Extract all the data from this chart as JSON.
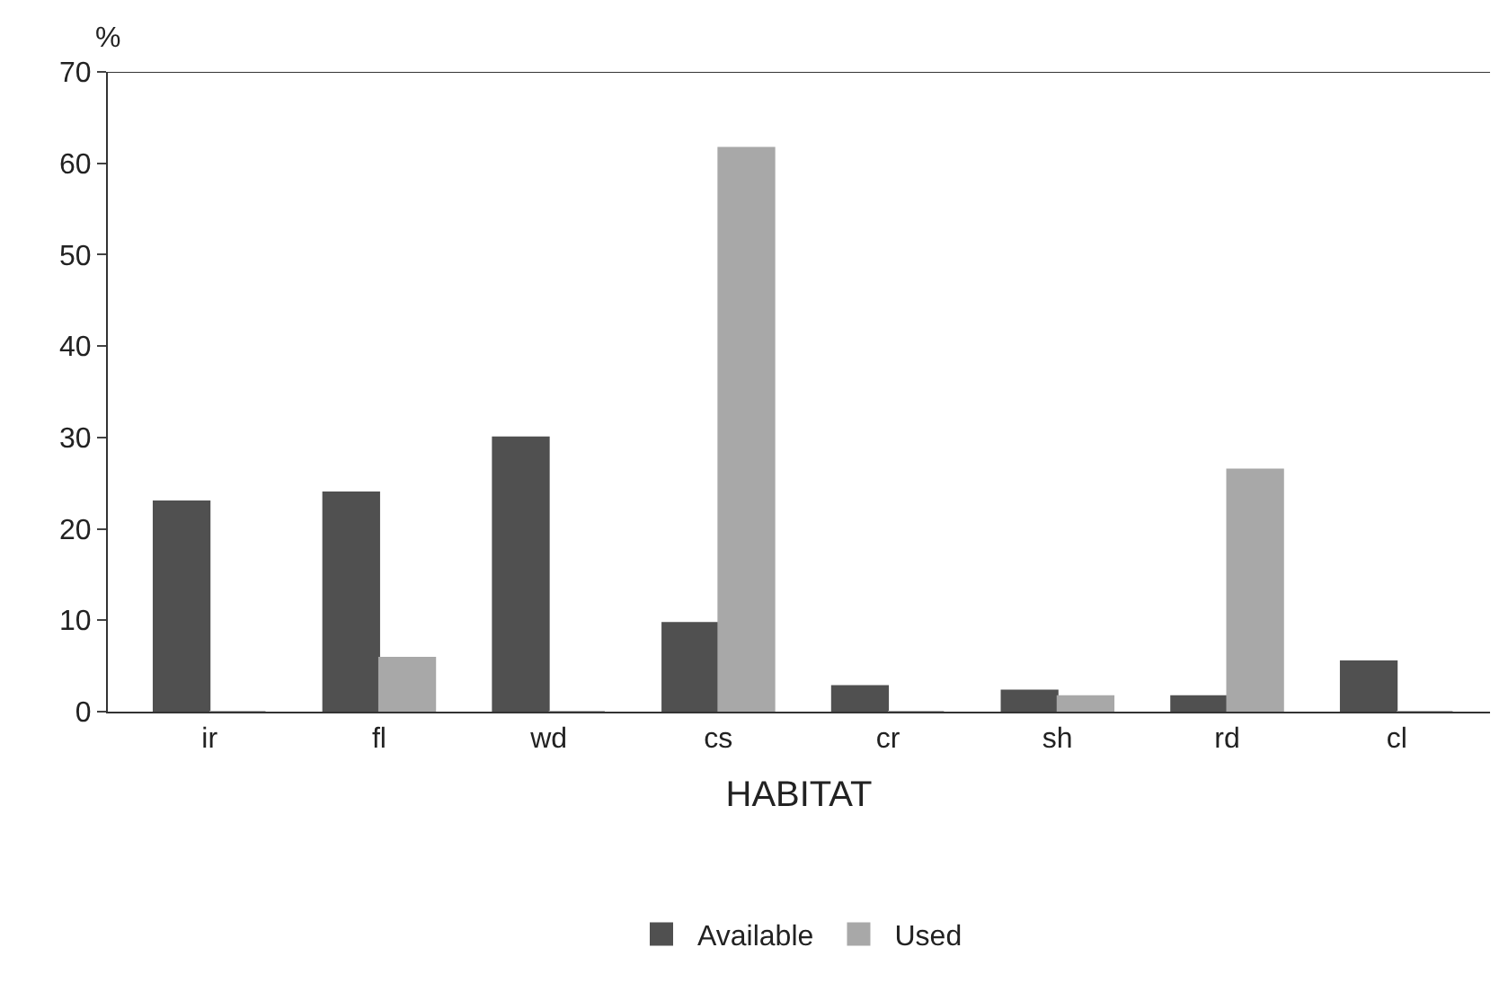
{
  "chart_data": {
    "type": "bar",
    "xlabel": "HABITAT",
    "ylabel": "%",
    "categories": [
      "ir",
      "fl",
      "wd",
      "cs",
      "cr",
      "sh",
      "rd",
      "cl"
    ],
    "series": [
      {
        "name": "Available",
        "color": "#505050",
        "values": [
          23,
          24,
          30,
          9.7,
          2.8,
          2.3,
          1.7,
          5.5
        ]
      },
      {
        "name": "Used",
        "color": "#a8a8a8",
        "values": [
          0,
          5.9,
          0,
          61.7,
          0,
          1.7,
          26.5,
          0
        ]
      }
    ],
    "ylim": [
      0,
      70
    ],
    "yticks": [
      0,
      10,
      20,
      30,
      40,
      50,
      60,
      70
    ],
    "legend": "bottom"
  }
}
